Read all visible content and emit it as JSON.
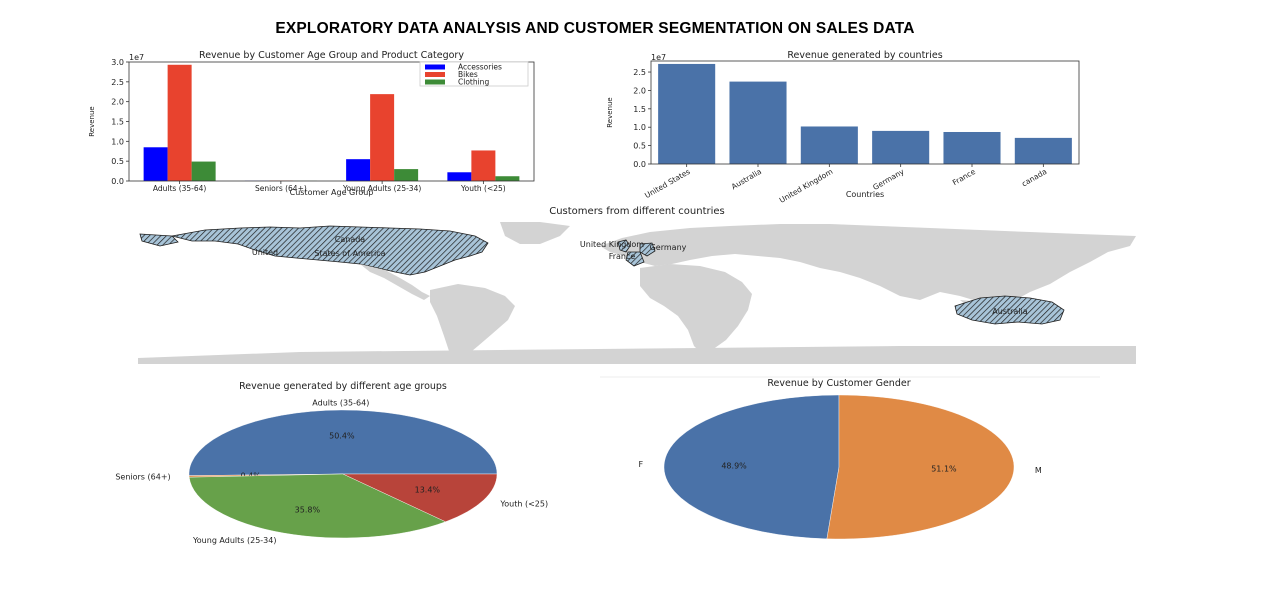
{
  "page": {
    "title": "EXPLORATORY DATA ANALYSIS AND CUSTOMER SEGMENTATION ON SALES DATA"
  },
  "chart_data": [
    {
      "id": "age-category",
      "type": "bar",
      "title": "Revenue by Customer Age Group and Product Category",
      "xlabel": "Customer Age Group",
      "ylabel": "Revenue",
      "offset_label": "1e7",
      "categories": [
        "Adults (35-64)",
        "Seniors (64+)",
        "Young Adults (25-34)",
        "Youth (<25)"
      ],
      "series": [
        {
          "name": "Accessories",
          "color": "#0000ff",
          "values": [
            0.85,
            0.005,
            0.55,
            0.22
          ]
        },
        {
          "name": "Bikes",
          "color": "#e8432e",
          "values": [
            2.93,
            0.01,
            2.19,
            0.77
          ]
        },
        {
          "name": "Clothing",
          "color": "#3d8b37",
          "values": [
            0.49,
            0.004,
            0.3,
            0.12
          ]
        }
      ],
      "ylim": [
        0,
        3.0
      ],
      "yticks": [
        "0.0",
        "0.5",
        "1.0",
        "1.5",
        "2.0",
        "2.5",
        "3.0"
      ],
      "legend": "top-right"
    },
    {
      "id": "countries",
      "type": "bar",
      "title": "Revenue generated by countries",
      "xlabel": "Countries",
      "ylabel": "Revenue",
      "offset_label": "1e7",
      "categories": [
        "United States",
        "Australia",
        "United Kingdom",
        "Germany",
        "France",
        "canada"
      ],
      "values": [
        2.72,
        2.24,
        1.02,
        0.9,
        0.87,
        0.71
      ],
      "color": "#4a72a8",
      "ylim": [
        0,
        2.8
      ],
      "yticks": [
        "0.0",
        "0.5",
        "1.0",
        "1.5",
        "2.0",
        "2.5"
      ]
    },
    {
      "id": "map",
      "type": "other",
      "title": "Customers from different countries",
      "labels": [
        "Canada",
        "United",
        "States of America",
        "United Kingdom",
        "Germany",
        "France",
        "Australia"
      ],
      "land_color": "#d3d3d3",
      "highlight_color": "#a8c4d8"
    },
    {
      "id": "age-pie",
      "type": "pie",
      "title": "Revenue generated by different age groups",
      "labels": [
        "Adults (35-64)",
        "Seniors (64+)",
        "Young Adults (25-34)",
        "Youth (<25)"
      ],
      "values": [
        50.4,
        0.4,
        35.8,
        13.4
      ],
      "pct_labels": [
        "50.4%",
        "0.4%",
        "35.8%",
        "13.4%"
      ],
      "colors": [
        "#4a72a8",
        "#e08a45",
        "#67a14a",
        "#b8443a"
      ]
    },
    {
      "id": "gender-pie",
      "type": "pie",
      "title": "Revenue by Customer Gender",
      "labels": [
        "F",
        "M"
      ],
      "values": [
        48.9,
        51.1
      ],
      "pct_labels": [
        "48.9%",
        "51.1%"
      ],
      "colors": [
        "#4a72a8",
        "#e08a45"
      ]
    }
  ]
}
